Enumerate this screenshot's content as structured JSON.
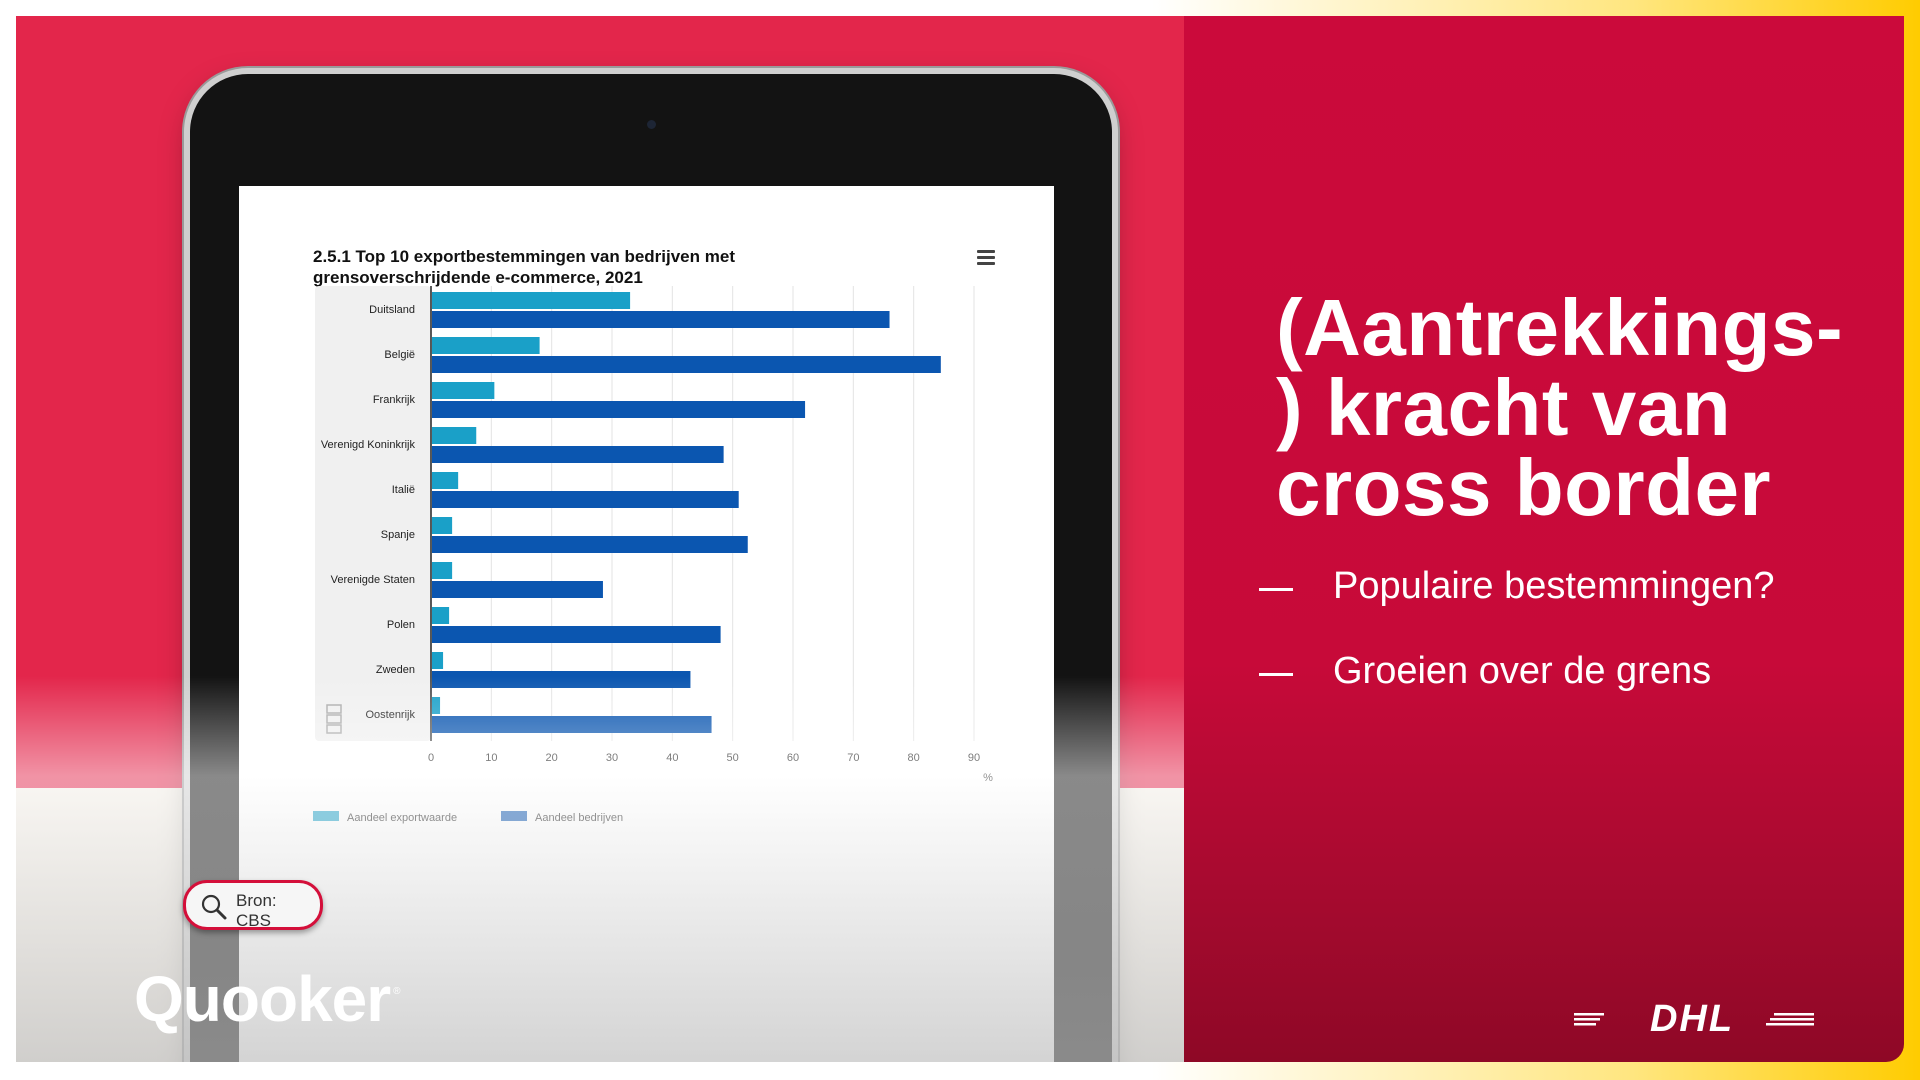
{
  "chart_data": {
    "type": "bar",
    "orientation": "horizontal",
    "title_lines": [
      "2.5.1 Top 10 exportbestemmingen van bedrijven met",
      "grensoverschrijdende e-commerce, 2021"
    ],
    "categories": [
      "Duitsland",
      "België",
      "Frankrijk",
      "Verenigd Koninkrijk",
      "Italië",
      "Spanje",
      "Verenigde Staten",
      "Polen",
      "Zweden",
      "Oostenrijk"
    ],
    "series": [
      {
        "name": "Aandeel exportwaarde",
        "color": "#1aa0c8",
        "values": [
          33,
          18,
          10.5,
          7.5,
          4.5,
          3.5,
          3.5,
          3,
          2,
          1.5
        ]
      },
      {
        "name": "Aandeel bedrijven",
        "color": "#0b56b0",
        "values": [
          76,
          84.5,
          62,
          48.5,
          51,
          52.5,
          28.5,
          48,
          43,
          46.5
        ]
      }
    ],
    "xlim": [
      0,
      90
    ],
    "xticks": [
      "0",
      "10",
      "20",
      "30",
      "40",
      "50",
      "60",
      "70",
      "80",
      "90"
    ],
    "unit_label": "%",
    "grid": true,
    "legend_position": "bottom-left",
    "menu_icon": "hamburger-menu-icon",
    "source_logo": "cbs-logo"
  },
  "headline": "(Aantrekkings-) kracht van cross border",
  "bullets": [
    "Populaire bestemmingen?",
    "Groeien over de grens"
  ],
  "source_badge": {
    "icon": "search-icon",
    "label": "Bron: CBS"
  },
  "brand_logos": {
    "left": "Quooker",
    "left_mark": "®",
    "right": "DHL"
  },
  "colors": {
    "left_red": "#e3264b",
    "right_red": "#cb0a3b",
    "dhl_yellow": "#ffcc00",
    "badge_border": "#d40f3a"
  }
}
